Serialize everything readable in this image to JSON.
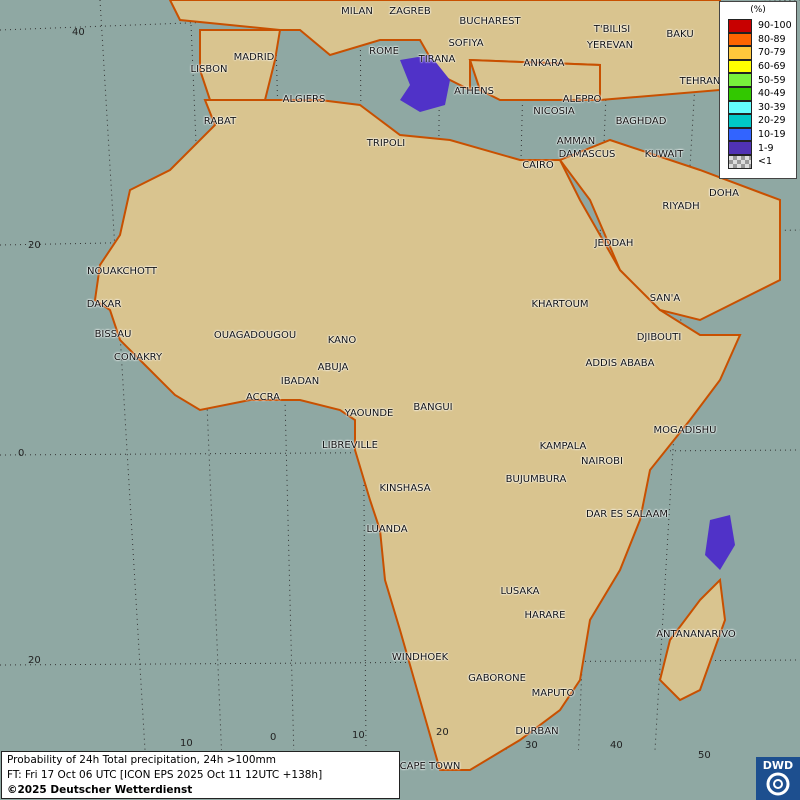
{
  "legend": {
    "unit": "(%)",
    "items": [
      {
        "label": "90-100",
        "color": "#c80000"
      },
      {
        "label": "80-89",
        "color": "#ff6400"
      },
      {
        "label": "70-79",
        "color": "#ffc83c"
      },
      {
        "label": "60-69",
        "color": "#ffff00"
      },
      {
        "label": "50-59",
        "color": "#78f03c"
      },
      {
        "label": "40-49",
        "color": "#32c800"
      },
      {
        "label": "30-39",
        "color": "#64ffff"
      },
      {
        "label": "20-29",
        "color": "#00c8c8"
      },
      {
        "label": "10-19",
        "color": "#3264ff"
      },
      {
        "label": "1-9",
        "color": "#5032b4"
      },
      {
        "label": "<1",
        "color": "checker"
      }
    ]
  },
  "info": {
    "line1": "Probability of 24h Total precipitation, 24h >100mm",
    "line2": "FT: Fri 17 Oct 06 UTC [ICON EPS 2025 Oct 11 12UTC +138h]",
    "line3": "©2025 Deutscher Wetterdienst"
  },
  "logo": {
    "text": "DWD"
  },
  "gridlabels": [
    "40",
    "20",
    "0",
    "20",
    "10",
    "0",
    "10",
    "20",
    "30",
    "40",
    "50"
  ],
  "cities": [
    "MILAN",
    "ZAGREB",
    "BUCHAREST",
    "T'BILISI",
    "BAKU",
    "MADRID",
    "ROME",
    "SOFIYA",
    "YEREVAN",
    "LISBON",
    "TIRANA",
    "ANKARA",
    "TEHRAN",
    "ALGIERS",
    "ATHENS",
    "ALEPPO",
    "RABAT",
    "NICOSIA",
    "BAGHDAD",
    "TRIPOLI",
    "DAMASCUS",
    "AMMAN",
    "KUWAIT",
    "CAIRO",
    "DOHA",
    "RIYADH",
    "JEDDAH",
    "NOUAKCHOTT",
    "DAKAR",
    "KHARTOUM",
    "SAN'A",
    "BISSAU",
    "OUAGADOUGOU",
    "KANO",
    "DJIBOUTI",
    "CONAKRY",
    "ABUJA",
    "ADDIS ABABA",
    "IBADAN",
    "ACCRA",
    "YAOUNDE",
    "BANGUI",
    "MOGADISHU",
    "LIBREVILLE",
    "KAMPALA",
    "NAIROBI",
    "BUJUMBURA",
    "KINSHASA",
    "DAR ES SALAAM",
    "LUANDA",
    "LUSAKA",
    "HARARE",
    "ANTANANARIVO",
    "WINDHOEK",
    "GABORONE",
    "MAPUTO",
    "DURBAN",
    "CAPE TOWN"
  ],
  "colors": {
    "sea": "#8fa8a3",
    "land": "#d9c48f",
    "coast": "#c85000",
    "precip": "#5032c8"
  }
}
